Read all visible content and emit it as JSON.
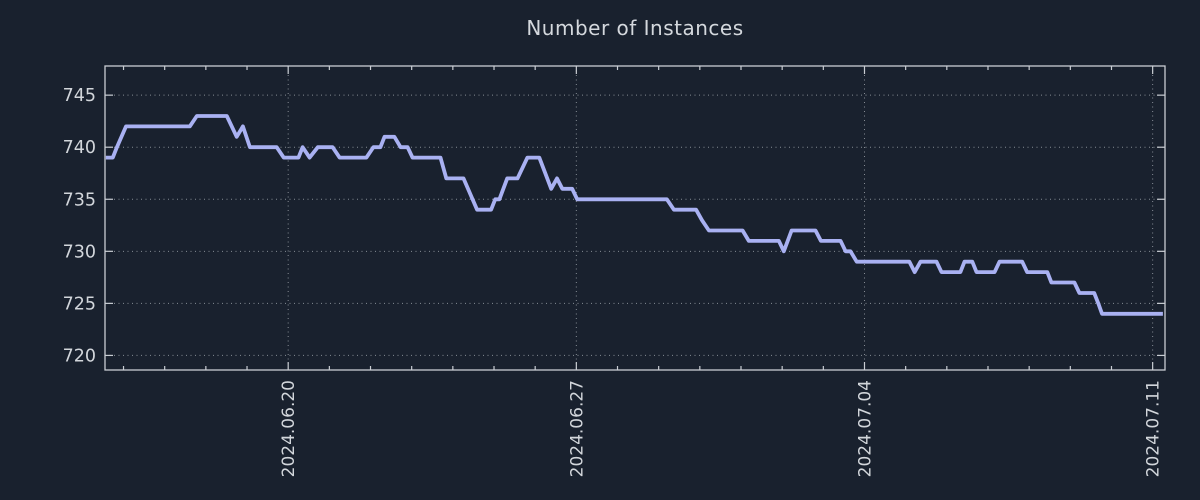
{
  "title": "Number of Instances",
  "colors": {
    "background": "#19212e",
    "line": "#a9b1f2",
    "border": "#c9cdd3",
    "grid": "#9aa0a8",
    "text": "#d2d6db"
  },
  "chart_data": {
    "type": "line",
    "title": "Number of Instances",
    "xlabel": "",
    "ylabel": "",
    "x_unit": "days relative to 2024.06.20",
    "xlim": [
      -4.45,
      21.3
    ],
    "ylim": [
      718.6,
      747.8
    ],
    "grid": "dotted",
    "legend": "none",
    "x_major_ticks": [
      {
        "t": 0,
        "label": "2024.06.20"
      },
      {
        "t": 7,
        "label": "2024.06.27"
      },
      {
        "t": 14,
        "label": "2024.07.04"
      },
      {
        "t": 21,
        "label": "2024.07.11"
      }
    ],
    "x_minor_tick_step_days": 1,
    "y_ticks": [
      720,
      725,
      730,
      735,
      740,
      745
    ],
    "series": [
      {
        "name": "instances",
        "points": [
          [
            -4.43,
            739
          ],
          [
            -4.26,
            739
          ],
          [
            -4.16,
            740
          ],
          [
            -3.94,
            742
          ],
          [
            -2.39,
            742
          ],
          [
            -2.22,
            743
          ],
          [
            -1.49,
            743
          ],
          [
            -1.25,
            741
          ],
          [
            -1.1,
            742
          ],
          [
            -0.93,
            740
          ],
          [
            -0.28,
            740
          ],
          [
            -0.11,
            739
          ],
          [
            0.25,
            739
          ],
          [
            0.35,
            740
          ],
          [
            0.52,
            739
          ],
          [
            0.72,
            740
          ],
          [
            1.08,
            740
          ],
          [
            1.25,
            739
          ],
          [
            1.9,
            739
          ],
          [
            2.07,
            740
          ],
          [
            2.24,
            740
          ],
          [
            2.34,
            741
          ],
          [
            2.58,
            741
          ],
          [
            2.73,
            740
          ],
          [
            2.9,
            740
          ],
          [
            3.02,
            739
          ],
          [
            3.7,
            739
          ],
          [
            3.84,
            737
          ],
          [
            4.26,
            737
          ],
          [
            4.59,
            734
          ],
          [
            4.93,
            734
          ],
          [
            5.03,
            735
          ],
          [
            5.13,
            735
          ],
          [
            5.32,
            737
          ],
          [
            5.57,
            737
          ],
          [
            5.81,
            739
          ],
          [
            6.1,
            739
          ],
          [
            6.39,
            736
          ],
          [
            6.53,
            737
          ],
          [
            6.66,
            736
          ],
          [
            6.9,
            736
          ],
          [
            7.02,
            735
          ],
          [
            9.2,
            735
          ],
          [
            9.37,
            734
          ],
          [
            9.91,
            734
          ],
          [
            10.05,
            733
          ],
          [
            10.22,
            732
          ],
          [
            11.04,
            732
          ],
          [
            11.19,
            731
          ],
          [
            11.92,
            731
          ],
          [
            12.04,
            730
          ],
          [
            12.23,
            732
          ],
          [
            12.81,
            732
          ],
          [
            12.94,
            731
          ],
          [
            13.42,
            731
          ],
          [
            13.54,
            730
          ],
          [
            13.66,
            730
          ],
          [
            13.81,
            729
          ],
          [
            15.09,
            729
          ],
          [
            15.22,
            728
          ],
          [
            15.36,
            729
          ],
          [
            15.75,
            729
          ],
          [
            15.87,
            728
          ],
          [
            16.33,
            728
          ],
          [
            16.43,
            729
          ],
          [
            16.62,
            729
          ],
          [
            16.72,
            728
          ],
          [
            17.16,
            728
          ],
          [
            17.28,
            729
          ],
          [
            17.83,
            729
          ],
          [
            17.95,
            728
          ],
          [
            18.44,
            728
          ],
          [
            18.54,
            727
          ],
          [
            19.1,
            727
          ],
          [
            19.22,
            726
          ],
          [
            19.58,
            726
          ],
          [
            19.68,
            725
          ],
          [
            19.77,
            724
          ],
          [
            21.25,
            724
          ]
        ]
      }
    ]
  }
}
